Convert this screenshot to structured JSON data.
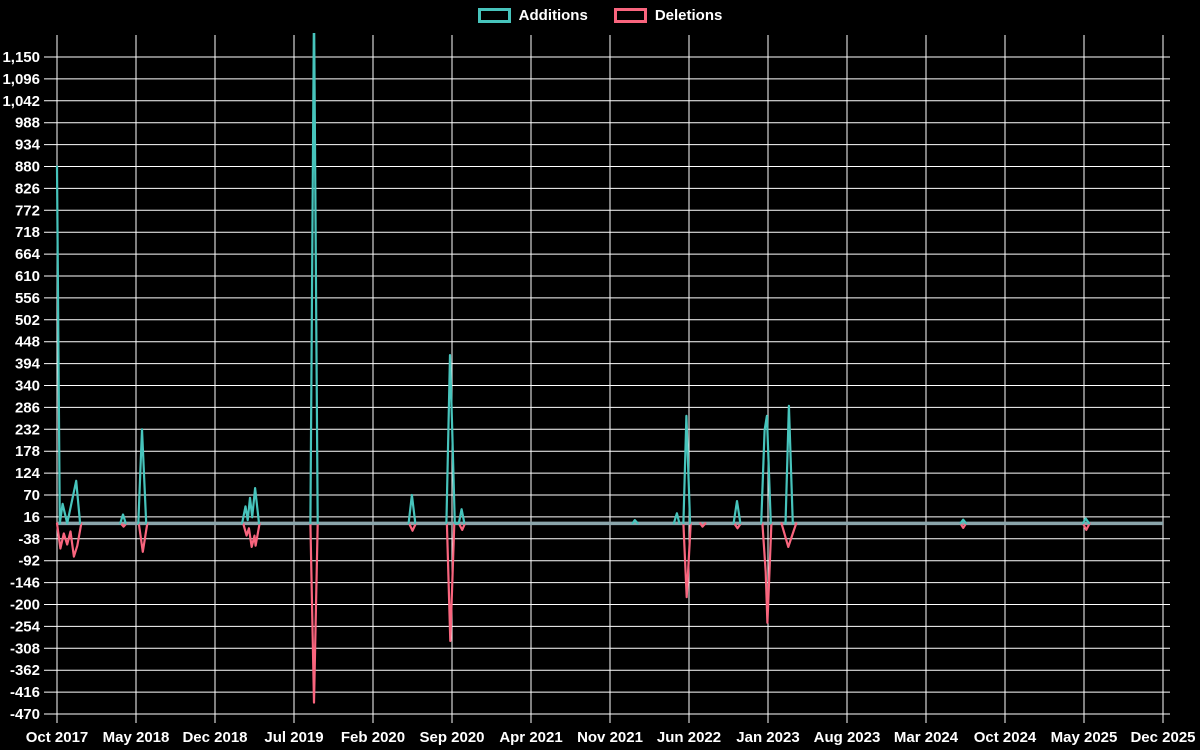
{
  "legend": {
    "additions_label": "Additions",
    "deletions_label": "Deletions"
  },
  "chart_data": {
    "type": "line",
    "title": "",
    "xlabel": "",
    "ylabel": "",
    "background_color": "#000000",
    "grid_color": "#ffffff",
    "text_color": "#ffffff",
    "baseline_color": "#8aa5ab",
    "legend_position": "top-center",
    "grid": true,
    "y_min": -470,
    "y_max": 1150,
    "y_step": 54,
    "y_tick_labels": [
      "1,150",
      "1,096",
      "1,042",
      "988",
      "934",
      "880",
      "826",
      "772",
      "718",
      "664",
      "610",
      "556",
      "502",
      "448",
      "394",
      "340",
      "286",
      "232",
      "178",
      "124",
      "70",
      "16",
      "-38",
      "-92",
      "-146",
      "-200",
      "-254",
      "-308",
      "-362",
      "-416",
      "-470"
    ],
    "x_tick_labels": [
      "Oct 2017",
      "May 2018",
      "Dec 2018",
      "Jul 2019",
      "Feb 2020",
      "Sep 2020",
      "Apr 2021",
      "Nov 2021",
      "Jun 2022",
      "Jan 2023",
      "Aug 2023",
      "Mar 2024",
      "Oct 2024",
      "May 2025",
      "Dec 2025"
    ],
    "x_range_months": 98,
    "baseline_value": 0,
    "note": "x in series points = months after Oct 2017; spike at month 22.8 (Sep 2019) is clipped above 1,150",
    "series": [
      {
        "name": "Additions",
        "color": "#47c4bc",
        "groups": [
          [
            [
              0,
              880
            ],
            [
              0.25,
              0
            ],
            [
              0.5,
              48
            ],
            [
              0.9,
              0
            ],
            [
              1.7,
              105
            ],
            [
              2.05,
              0
            ]
          ],
          [
            [
              5.6,
              0
            ],
            [
              5.85,
              22
            ],
            [
              6.1,
              0
            ]
          ],
          [
            [
              7.2,
              0
            ],
            [
              7.53,
              232
            ],
            [
              7.9,
              0
            ]
          ],
          [
            [
              16.4,
              0
            ],
            [
              16.7,
              42
            ],
            [
              16.9,
              8
            ],
            [
              17.1,
              63
            ],
            [
              17.3,
              15
            ],
            [
              17.55,
              87
            ],
            [
              17.9,
              0
            ]
          ],
          [
            [
              22.45,
              0
            ],
            [
              22.77,
              1280
            ],
            [
              23.1,
              0
            ]
          ],
          [
            [
              31.15,
              0
            ],
            [
              31.45,
              70
            ],
            [
              31.75,
              0
            ]
          ],
          [
            [
              34.5,
              0
            ],
            [
              34.82,
              415
            ],
            [
              35.0,
              250
            ],
            [
              35.25,
              0
            ],
            [
              35.6,
              0
            ],
            [
              35.85,
              35
            ],
            [
              36.1,
              0
            ]
          ],
          [
            [
              51.0,
              0
            ],
            [
              51.2,
              8
            ],
            [
              51.45,
              0
            ]
          ],
          [
            [
              54.65,
              0
            ],
            [
              54.93,
              25
            ],
            [
              55.15,
              0
            ]
          ],
          [
            [
              55.5,
              0
            ],
            [
              55.77,
              265
            ],
            [
              56.1,
              0
            ]
          ],
          [
            [
              59.95,
              0
            ],
            [
              60.25,
              55
            ],
            [
              60.55,
              0
            ]
          ],
          [
            [
              62.4,
              0
            ],
            [
              62.7,
              230
            ],
            [
              62.9,
              265
            ],
            [
              63.25,
              0
            ]
          ],
          [
            [
              64.55,
              0
            ],
            [
              64.85,
              290
            ],
            [
              65.2,
              0
            ]
          ],
          [
            [
              80.05,
              0
            ],
            [
              80.3,
              9
            ],
            [
              80.55,
              0
            ]
          ],
          [
            [
              90.9,
              0
            ],
            [
              91.15,
              12
            ],
            [
              91.45,
              0
            ]
          ]
        ]
      },
      {
        "name": "Deletions",
        "color": "#f9657e",
        "groups": [
          [
            [
              0,
              0
            ],
            [
              0.3,
              -62
            ],
            [
              0.6,
              -25
            ],
            [
              0.9,
              -52
            ],
            [
              1.2,
              -20
            ],
            [
              1.5,
              -82
            ],
            [
              1.8,
              -55
            ],
            [
              2.15,
              0
            ]
          ],
          [
            [
              5.65,
              0
            ],
            [
              5.9,
              -8
            ],
            [
              6.15,
              0
            ]
          ],
          [
            [
              7.25,
              0
            ],
            [
              7.6,
              -70
            ],
            [
              8.0,
              0
            ]
          ],
          [
            [
              16.5,
              0
            ],
            [
              16.8,
              -30
            ],
            [
              17.0,
              -12
            ],
            [
              17.25,
              -58
            ],
            [
              17.5,
              -30
            ],
            [
              17.6,
              -55
            ],
            [
              17.95,
              0
            ]
          ],
          [
            [
              22.45,
              0
            ],
            [
              22.77,
              -442
            ],
            [
              23.1,
              0
            ]
          ],
          [
            [
              31.2,
              0
            ],
            [
              31.5,
              -18
            ],
            [
              31.8,
              0
            ]
          ],
          [
            [
              34.55,
              0
            ],
            [
              34.85,
              -290
            ],
            [
              35.2,
              0
            ],
            [
              35.6,
              0
            ],
            [
              35.9,
              -16
            ],
            [
              36.15,
              0
            ]
          ],
          [
            [
              55.5,
              0
            ],
            [
              55.8,
              -182
            ],
            [
              56.15,
              0
            ]
          ],
          [
            [
              57.0,
              0
            ],
            [
              57.2,
              -8
            ],
            [
              57.45,
              0
            ]
          ],
          [
            [
              60.0,
              0
            ],
            [
              60.3,
              -12
            ],
            [
              60.6,
              0
            ]
          ],
          [
            [
              62.5,
              0
            ],
            [
              62.8,
              -120
            ],
            [
              62.95,
              -245
            ],
            [
              63.3,
              0
            ]
          ],
          [
            [
              64.2,
              0
            ],
            [
              64.8,
              -58
            ],
            [
              65.5,
              0
            ]
          ],
          [
            [
              80.05,
              0
            ],
            [
              80.3,
              -11
            ],
            [
              80.55,
              0
            ]
          ],
          [
            [
              90.9,
              0
            ],
            [
              91.2,
              -16
            ],
            [
              91.5,
              0
            ]
          ]
        ]
      }
    ]
  }
}
